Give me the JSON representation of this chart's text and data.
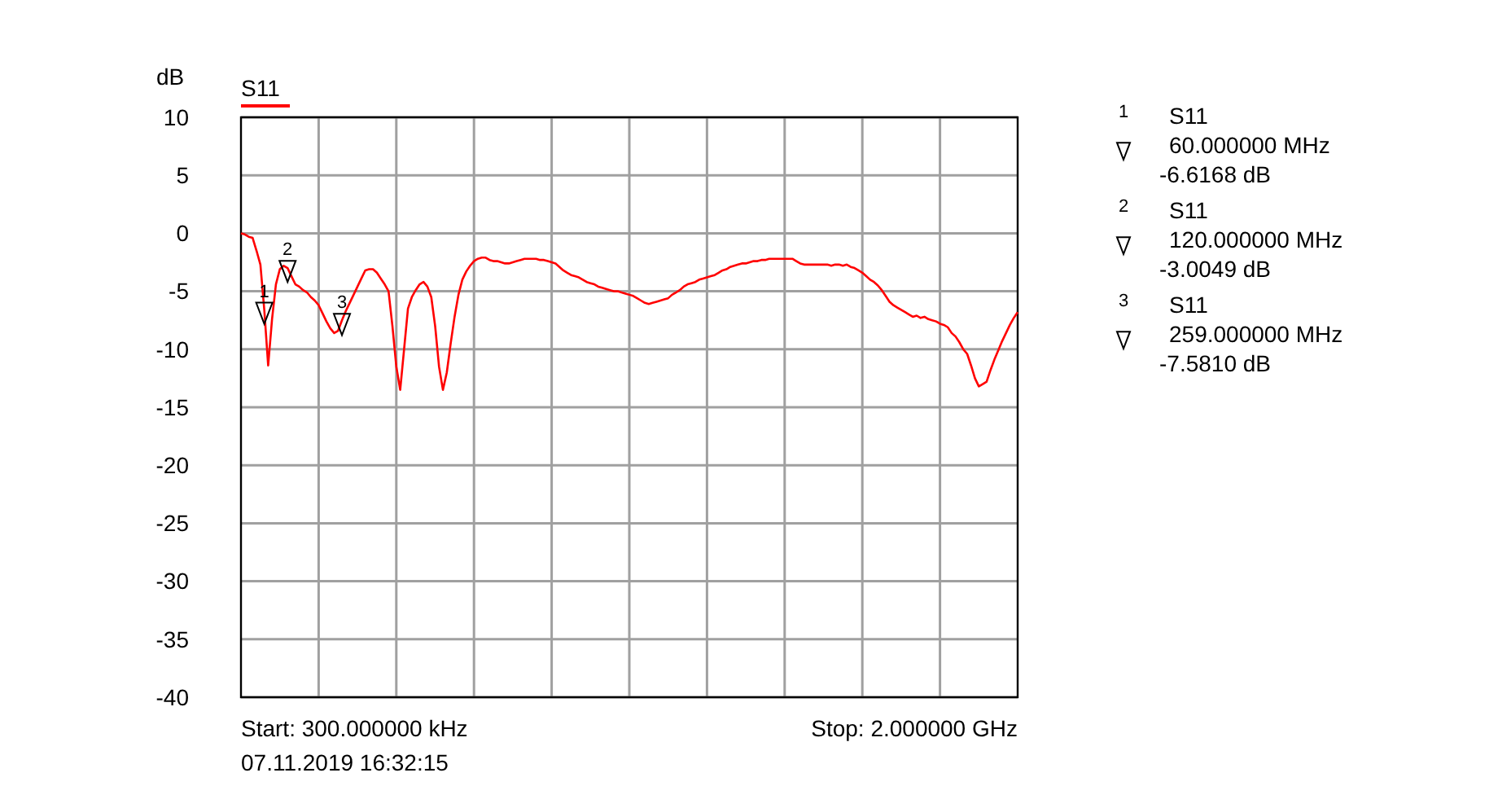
{
  "chart_data": {
    "type": "line",
    "ylabel": "dB",
    "legend": "top left",
    "grid": true,
    "categories": [
      null,
      null,
      null,
      null,
      null,
      null,
      null,
      null,
      null,
      null,
      null,
      null,
      null,
      null,
      null,
      null,
      null,
      null,
      null,
      null,
      null,
      null,
      null,
      null,
      null,
      null,
      null,
      null,
      null,
      null,
      null,
      null,
      null,
      null,
      null,
      null,
      null,
      null,
      null,
      null,
      null,
      null,
      null,
      null,
      null,
      null,
      null,
      null,
      null,
      null,
      null,
      null,
      null,
      null,
      null,
      null,
      null,
      null,
      null,
      null,
      null,
      null,
      null,
      null,
      null,
      null,
      null,
      null,
      null,
      null,
      null,
      null,
      null,
      null,
      null,
      null,
      null,
      null,
      null,
      null,
      null,
      null,
      null,
      null,
      null,
      null,
      null,
      null,
      null,
      null,
      null,
      null,
      null,
      null,
      null,
      null,
      null,
      null,
      null,
      null,
      null,
      null,
      null,
      null,
      null,
      null,
      null,
      null,
      null,
      null,
      null,
      null,
      null,
      null,
      null,
      null,
      null,
      null,
      null,
      null,
      null,
      null,
      null,
      null,
      null,
      null,
      null,
      null,
      null,
      null,
      null,
      null,
      null,
      null,
      null,
      null,
      null,
      null,
      null,
      null,
      null,
      null,
      null,
      null,
      null,
      null,
      null,
      null,
      null,
      null,
      null,
      null,
      null,
      null,
      null,
      null,
      null,
      null,
      null,
      null,
      null,
      null,
      null,
      null,
      null,
      null,
      null,
      null,
      null,
      null,
      null,
      null,
      null,
      null,
      null,
      null,
      null,
      null,
      null,
      null,
      null,
      null,
      null,
      null,
      null,
      null,
      null,
      null,
      null,
      null,
      null,
      null,
      null,
      null,
      null,
      null,
      null,
      null,
      null,
      null,
      null
    ],
    "ylim": [
      -40,
      10
    ],
    "yticks": [
      10,
      5,
      0,
      -5,
      -10,
      -15,
      -20,
      -25,
      -30,
      -35,
      -40
    ],
    "series": [
      {
        "name": "S11",
        "color": "#ff0000",
        "values": [
          0,
          -0.1,
          -0.3,
          -0.4,
          -1.5,
          -2.7,
          -6.6,
          -11.4,
          -7.4,
          -4.4,
          -3.1,
          -2.8,
          -3.0,
          -3.7,
          -4.4,
          -4.6,
          -4.9,
          -5.1,
          -5.5,
          -5.8,
          -6.2,
          -6.9,
          -7.6,
          -8.2,
          -8.6,
          -8.4,
          -7.5,
          -6.7,
          -6.0,
          -5.3,
          -4.6,
          -3.9,
          -3.2,
          -3.1,
          -3.1,
          -3.4,
          -3.9,
          -4.4,
          -5.0,
          -8.0,
          -11.5,
          -13.5,
          -10.0,
          -6.5,
          -5.5,
          -4.9,
          -4.4,
          -4.2,
          -4.6,
          -5.5,
          -8.0,
          -11.5,
          -13.5,
          -12.0,
          -9.5,
          -7.2,
          -5.3,
          -4.0,
          -3.3,
          -2.8,
          -2.4,
          -2.2,
          -2.1,
          -2.1,
          -2.3,
          -2.4,
          -2.4,
          -2.5,
          -2.6,
          -2.6,
          -2.5,
          -2.4,
          -2.3,
          -2.2,
          -2.2,
          -2.2,
          -2.2,
          -2.3,
          -2.3,
          -2.4,
          -2.5,
          -2.6,
          -2.9,
          -3.2,
          -3.4,
          -3.6,
          -3.7,
          -3.8,
          -4.0,
          -4.2,
          -4.3,
          -4.4,
          -4.6,
          -4.7,
          -4.8,
          -4.9,
          -5.0,
          -5.0,
          -5.1,
          -5.2,
          -5.3,
          -5.4,
          -5.6,
          -5.8,
          -6.0,
          -6.1,
          -6.0,
          -5.9,
          -5.8,
          -5.7,
          -5.6,
          -5.3,
          -5.1,
          -4.9,
          -4.6,
          -4.4,
          -4.3,
          -4.2,
          -4.0,
          -3.9,
          -3.8,
          -3.7,
          -3.6,
          -3.4,
          -3.2,
          -3.1,
          -2.9,
          -2.8,
          -2.7,
          -2.6,
          -2.6,
          -2.5,
          -2.4,
          -2.4,
          -2.3,
          -2.3,
          -2.2,
          -2.2,
          -2.2,
          -2.2,
          -2.2,
          -2.2,
          -2.2,
          -2.4,
          -2.6,
          -2.7,
          -2.7,
          -2.7,
          -2.7,
          -2.7,
          -2.7,
          -2.7,
          -2.8,
          -2.7,
          -2.7,
          -2.8,
          -2.7,
          -2.9,
          -3.0,
          -3.2,
          -3.4,
          -3.7,
          -4.0,
          -4.2,
          -4.5,
          -4.9,
          -5.4,
          -5.9,
          -6.2,
          -6.4,
          -6.6,
          -6.8,
          -7.0,
          -7.2,
          -7.1,
          -7.3,
          -7.2,
          -7.4,
          -7.5,
          -7.6,
          -7.8,
          -7.9,
          -8.1,
          -8.6,
          -8.9,
          -9.4,
          -10.0,
          -10.4,
          -11.4,
          -12.5,
          -13.2,
          -13.0,
          -12.8,
          -11.8,
          -10.9,
          -10.1,
          -9.3,
          -8.6,
          -7.9,
          -7.3,
          -6.8
        ]
      },
      {
        "type": "scatter",
        "color": "#000000",
        "marker": "triangle",
        "values": [
          null,
          null,
          null,
          null,
          null,
          null,
          -6.6168,
          null,
          null,
          null,
          null,
          null,
          -3.0049,
          null,
          null,
          null,
          null,
          null,
          null,
          null,
          null,
          null,
          null,
          null,
          null,
          null,
          -7.581,
          null,
          null,
          null,
          null,
          null,
          null,
          null,
          null,
          null,
          null,
          null,
          null,
          null,
          null,
          null,
          null,
          null,
          null,
          null,
          null,
          null,
          null,
          null,
          null,
          null,
          null,
          null,
          null,
          null,
          null,
          null,
          null,
          null,
          null,
          null,
          null,
          null,
          null,
          null,
          null,
          null,
          null,
          null,
          null,
          null,
          null,
          null,
          null,
          null,
          null,
          null,
          null,
          null,
          null,
          null,
          null,
          null,
          null,
          null,
          null,
          null,
          null,
          null,
          null,
          null,
          null,
          null,
          null,
          null,
          null,
          null,
          null,
          null,
          null,
          null,
          null,
          null,
          null,
          null,
          null,
          null,
          null,
          null,
          null,
          null,
          null,
          null,
          null,
          null,
          null,
          null,
          null,
          null,
          null,
          null,
          null,
          null,
          null,
          null,
          null,
          null,
          null,
          null,
          null,
          null,
          null,
          null,
          null,
          null,
          null,
          null,
          null,
          null,
          null,
          null,
          null,
          null,
          null,
          null,
          null,
          null,
          null,
          null,
          null,
          null,
          null,
          null,
          null,
          null,
          null,
          null,
          null,
          null,
          null,
          null,
          null,
          null,
          null,
          null,
          null,
          null,
          null,
          null,
          null,
          null,
          null,
          null,
          null,
          null,
          null,
          null,
          null,
          null,
          null,
          null,
          null,
          null,
          null,
          null,
          null,
          null,
          null,
          null,
          null,
          null,
          null,
          null,
          null,
          null,
          null,
          null,
          null,
          null,
          null
        ]
      }
    ],
    "annotations": [
      "Start: 300.000000 kHz",
      "Stop: 2.000000 GHz",
      "07.11.2019 16:32:15",
      "1",
      "2",
      "3",
      "1",
      "S11",
      "60.000000 MHz",
      "-6.6168 dB",
      "2",
      "S11",
      "120.000000 MHz",
      "-3.0049 dB",
      "3",
      "S11",
      "259.000000 MHz",
      "-7.5810 dB"
    ]
  }
}
